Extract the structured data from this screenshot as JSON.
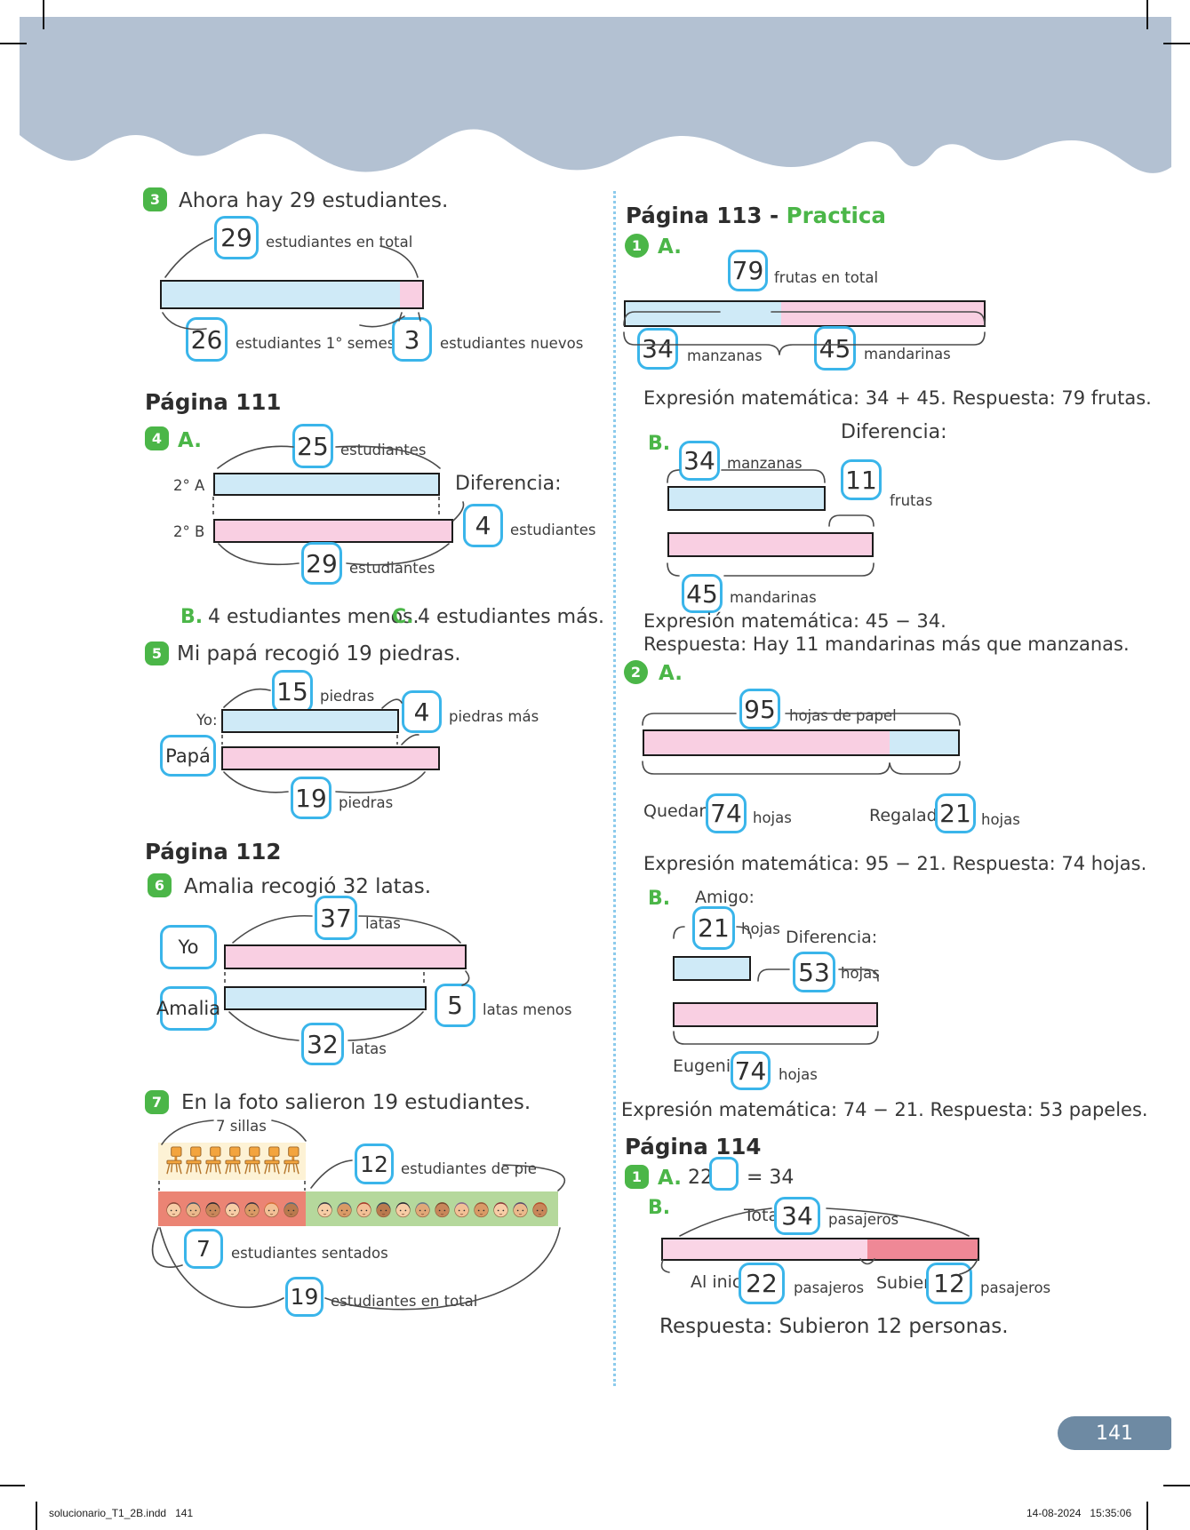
{
  "page": {
    "tab_number": "141",
    "footer": {
      "left": "solucionario_T1_2B.indd   141",
      "date": "14-08-2024",
      "time": "15:35:06"
    }
  },
  "colors": {
    "header_band": "#b3c1d2",
    "value_box_border": "#3ab5ea",
    "bar_blue": "#cfeaf7",
    "bar_pink": "#f9cfe2",
    "bar_light_pink": "#fad5e6",
    "bar_rose": "#ef8896",
    "badge_green": "#4bb648",
    "page_tab": "#6e8aa3",
    "photo_yellow": "#fdf2d5",
    "photo_red": "#eb8474",
    "photo_green": "#b5d89c"
  },
  "left": {
    "item3": {
      "badge": "3",
      "title": "Ahora hay 29 estudiantes.",
      "total": "29",
      "total_label": "estudiantes en total",
      "part1": "26",
      "part1_label": "estudiantes 1° semestre",
      "part2": "3",
      "part2_label": "estudiantes nuevos"
    },
    "heading111": "Página 111",
    "item4": {
      "badge": "4",
      "a_label": "A.",
      "top_value": "25",
      "top_unit": "estudiantes",
      "row_a": "2° A",
      "row_b": "2° B",
      "diff_title": "Diferencia:",
      "diff_value": "4",
      "diff_unit": "estudiantes",
      "bottom_value": "29",
      "bottom_unit": "estudiantes",
      "b_label": "B.",
      "b_text": "4 estudiantes menos.",
      "c_label": "C.",
      "c_text": "4 estudiantes más."
    },
    "item5": {
      "badge": "5",
      "title": "Mi papá recogió 19 piedras.",
      "top_value": "15",
      "top_unit": "piedras",
      "yo_label": "Yo:",
      "more_value": "4",
      "more_unit": "piedras más",
      "papa_label": "Papá",
      "bottom_value": "19",
      "bottom_unit": "piedras"
    },
    "heading112": "Página 112",
    "item6": {
      "badge": "6",
      "title": "Amalia recogió 32 latas.",
      "yo_label": "Yo",
      "top_value": "37",
      "top_unit": "latas",
      "amalia_label": "Amalia",
      "bottom_value": "32",
      "bottom_unit": "latas",
      "less_value": "5",
      "less_unit": "latas menos"
    },
    "item7": {
      "badge": "7",
      "title": "En la foto salieron 19 estudiantes.",
      "sillas_label": "7 sillas",
      "pie_value": "12",
      "pie_unit": "estudiantes de pie",
      "sentados_value": "7",
      "sentados_unit": "estudiantes sentados",
      "total_value": "19",
      "total_unit": "estudiantes en total",
      "illustration": {
        "chairs": 7,
        "seated": 7,
        "standing": 12
      }
    }
  },
  "right": {
    "heading113_prefix": "Página 113 - ",
    "heading113_highlight": "Practica",
    "item1": {
      "badge": "1",
      "a_label": "A.",
      "total": "79",
      "total_unit": "frutas en total",
      "part1": "34",
      "part1_unit": "manzanas",
      "part2": "45",
      "part2_unit": "mandarinas",
      "a_answer": "Expresión matemática: 34 + 45. Respuesta: 79 frutas.",
      "b_label": "B.",
      "diff_title": "Diferencia:",
      "b_top_value": "34",
      "b_top_unit": "manzanas",
      "diff_value": "11",
      "diff_unit": "frutas",
      "b_bottom_value": "45",
      "b_bottom_unit": "mandarinas",
      "b_answer_line1": "Expresión matemática: 45 − 34.",
      "b_answer_line2": "Respuesta: Hay 11 mandarinas más que manzanas."
    },
    "item2": {
      "badge": "2",
      "a_label": "A.",
      "total": "95",
      "total_unit": "hojas de papel",
      "left_label": "Quedaron:",
      "left_value": "74",
      "left_unit": "hojas",
      "right_label": "Regaladas:",
      "right_value": "21",
      "right_unit": "hojas",
      "a_answer": "Expresión matemática: 95 − 21. Respuesta: 74 hojas.",
      "b_label": "B.",
      "amigo_label": "Amigo:",
      "amigo_value": "21",
      "amigo_unit": "hojas",
      "diff_title": "Diferencia:",
      "diff_value": "53",
      "diff_unit": "hojas",
      "eugenio_label": "Eugenio:",
      "eugenio_value": "74",
      "eugenio_unit": "hojas",
      "b_answer": "Expresión matemática: 74 − 21. Respuesta: 53 papeles."
    },
    "heading114": "Página 114",
    "item114": {
      "badge": "1",
      "a_label": "A.",
      "equation_left": "22 +",
      "equation_right": "= 34",
      "b_label": "B.",
      "total_label": "Total:",
      "total_value": "34",
      "total_unit": "pasajeros",
      "inicio_label": "Al inicio:",
      "inicio_value": "22",
      "inicio_unit": "pasajeros",
      "subieron_label": "Subieron:",
      "subieron_value": "12",
      "subieron_unit": "pasajeros",
      "answer": "Respuesta: Subieron 12 personas."
    }
  }
}
